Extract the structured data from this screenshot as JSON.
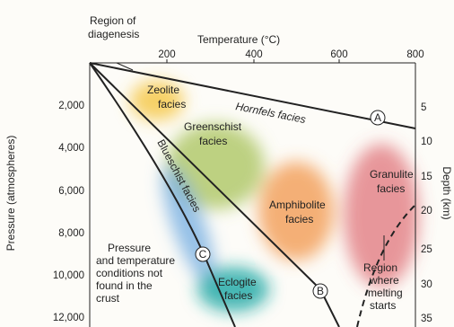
{
  "header": {
    "diagenesis": [
      "Region of",
      "diagenesis"
    ],
    "temperature_label": "Temperature (°C)"
  },
  "temperature_ticks": [
    "200",
    "400",
    "600",
    "800"
  ],
  "pressure_label": "Pressure (atmospheres)",
  "pressure_ticks": [
    "2,000",
    "4,000",
    "6,000",
    "8,000",
    "10,000",
    "12,000"
  ],
  "depth_label": "Depth (km)",
  "depth_ticks": [
    "5",
    "10",
    "15",
    "20",
    "25",
    "30",
    "35"
  ],
  "facies": {
    "zeolite": [
      "Zeolite",
      "facies"
    ],
    "hornfels": "Hornfels facies",
    "greenschist": [
      "Greenschist",
      "facies"
    ],
    "blueschist": "Blueschist facies",
    "amphibolite": [
      "Amphibolite",
      "facies"
    ],
    "granulite": [
      "Granulite",
      "facies"
    ],
    "eclogite": [
      "Eclogite",
      "facies"
    ]
  },
  "notes": {
    "not_found": [
      "Pressure",
      "and temperature",
      "conditions not",
      "found in the",
      "crust"
    ],
    "melting": [
      "Region",
      "where",
      "melting",
      "starts"
    ]
  },
  "markers": [
    "A",
    "B",
    "C"
  ]
}
